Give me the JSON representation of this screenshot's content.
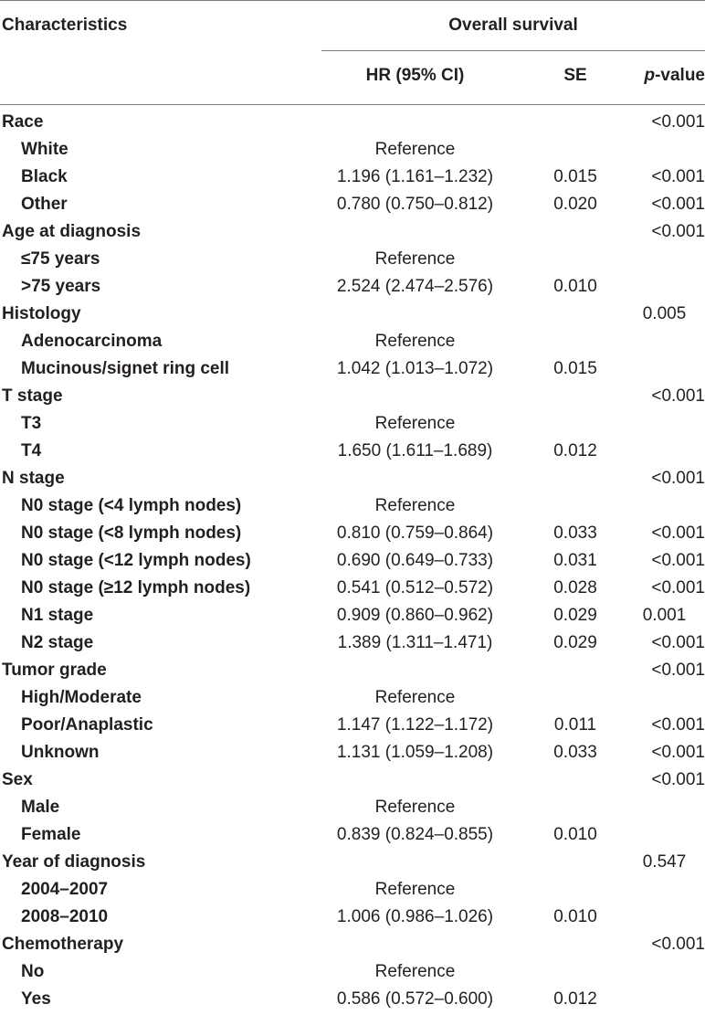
{
  "header": {
    "characteristics": "Characteristics",
    "overall_survival": "Overall survival",
    "hr": "HR (95% CI)",
    "se": "SE",
    "p_italic": "p",
    "p_rest": "-value"
  },
  "rows": [
    {
      "label": "Race",
      "sub": false,
      "hr": "",
      "se": "",
      "p": "<0.001"
    },
    {
      "label": "White",
      "sub": true,
      "hr": "Reference",
      "se": "",
      "p": ""
    },
    {
      "label": "Black",
      "sub": true,
      "hr": "1.196 (1.161–1.232)",
      "se": "0.015",
      "p": "<0.001"
    },
    {
      "label": "Other",
      "sub": true,
      "hr": "0.780 (0.750–0.812)",
      "se": "0.020",
      "p": "<0.001"
    },
    {
      "label": "Age at diagnosis",
      "sub": false,
      "hr": "",
      "se": "",
      "p": "<0.001"
    },
    {
      "label": "≤75 years",
      "sub": true,
      "hr": "Reference",
      "se": "",
      "p": ""
    },
    {
      "label": ">75 years",
      "sub": true,
      "hr": "2.524 (2.474–2.576)",
      "se": "0.010",
      "p": ""
    },
    {
      "label": "Histology",
      "sub": false,
      "hr": "",
      "se": "",
      "p": "0.005"
    },
    {
      "label": "Adenocarcinoma",
      "sub": true,
      "hr": "Reference",
      "se": "",
      "p": ""
    },
    {
      "label": "Mucinous/signet ring cell",
      "sub": true,
      "hr": "1.042 (1.013–1.072)",
      "se": "0.015",
      "p": ""
    },
    {
      "label": "T stage",
      "sub": false,
      "hr": "",
      "se": "",
      "p": "<0.001"
    },
    {
      "label": "T3",
      "sub": true,
      "hr": "Reference",
      "se": "",
      "p": ""
    },
    {
      "label": "T4",
      "sub": true,
      "hr": "1.650 (1.611–1.689)",
      "se": "0.012",
      "p": ""
    },
    {
      "label": "N stage",
      "sub": false,
      "hr": "",
      "se": "",
      "p": "<0.001"
    },
    {
      "label": "N0 stage (<4 lymph nodes)",
      "sub": true,
      "hr": "Reference",
      "se": "",
      "p": ""
    },
    {
      "label": "N0 stage (<8 lymph nodes)",
      "sub": true,
      "hr": "0.810 (0.759–0.864)",
      "se": "0.033",
      "p": "<0.001"
    },
    {
      "label": "N0 stage (<12 lymph nodes)",
      "sub": true,
      "hr": "0.690 (0.649–0.733)",
      "se": "0.031",
      "p": "<0.001"
    },
    {
      "label": "N0 stage (≥12 lymph nodes)",
      "sub": true,
      "hr": "0.541 (0.512–0.572)",
      "se": "0.028",
      "p": "<0.001"
    },
    {
      "label": "N1 stage",
      "sub": true,
      "hr": "0.909 (0.860–0.962)",
      "se": "0.029",
      "p": "0.001"
    },
    {
      "label": "N2 stage",
      "sub": true,
      "hr": "1.389 (1.311–1.471)",
      "se": "0.029",
      "p": "<0.001"
    },
    {
      "label": "Tumor grade",
      "sub": false,
      "hr": "",
      "se": "",
      "p": "<0.001"
    },
    {
      "label": "High/Moderate",
      "sub": true,
      "hr": "Reference",
      "se": "",
      "p": ""
    },
    {
      "label": "Poor/Anaplastic",
      "sub": true,
      "hr": "1.147 (1.122–1.172)",
      "se": "0.011",
      "p": "<0.001"
    },
    {
      "label": "Unknown",
      "sub": true,
      "hr": "1.131 (1.059–1.208)",
      "se": "0.033",
      "p": "<0.001"
    },
    {
      "label": "Sex",
      "sub": false,
      "hr": "",
      "se": "",
      "p": "<0.001"
    },
    {
      "label": "Male",
      "sub": true,
      "hr": "Reference",
      "se": "",
      "p": ""
    },
    {
      "label": "Female",
      "sub": true,
      "hr": "0.839 (0.824–0.855)",
      "se": "0.010",
      "p": ""
    },
    {
      "label": "Year of diagnosis",
      "sub": false,
      "hr": "",
      "se": "",
      "p": "0.547"
    },
    {
      "label": "2004–2007",
      "sub": true,
      "hr": "Reference",
      "se": "",
      "p": ""
    },
    {
      "label": "2008–2010",
      "sub": true,
      "hr": "1.006 (0.986–1.026)",
      "se": "0.010",
      "p": ""
    },
    {
      "label": "Chemotherapy",
      "sub": false,
      "hr": "",
      "se": "",
      "p": "<0.001"
    },
    {
      "label": "No",
      "sub": true,
      "hr": "Reference",
      "se": "",
      "p": ""
    },
    {
      "label": "Yes",
      "sub": true,
      "hr": "0.586 (0.572–0.600)",
      "se": "0.012",
      "p": ""
    }
  ]
}
